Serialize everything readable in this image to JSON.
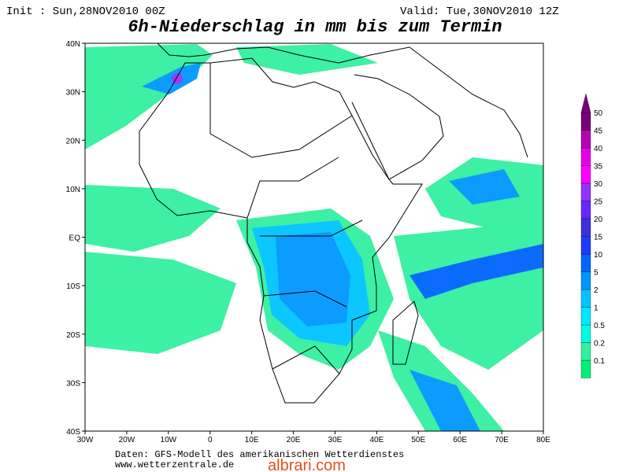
{
  "header": {
    "init": "Init : Sun,28NOV2010 00Z",
    "valid": "Valid: Tue,30NOV2010 12Z",
    "title": "6h-Niederschlag in mm bis zum Termin"
  },
  "axes": {
    "lat_labels": [
      "40N",
      "30N",
      "20N",
      "10N",
      "EQ",
      "10S",
      "20S",
      "30S",
      "40S"
    ],
    "lon_labels": [
      "30W",
      "20W",
      "10W",
      "0",
      "10E",
      "20E",
      "30E",
      "40E",
      "50E",
      "60E",
      "70E",
      "80E"
    ]
  },
  "colorbar": {
    "levels": [
      {
        "value": 0.1,
        "color": "#00f078"
      },
      {
        "value": 0.2,
        "color": "#33f0a0"
      },
      {
        "value": 0.5,
        "color": "#00fae6"
      },
      {
        "value": 1,
        "color": "#00e6ff"
      },
      {
        "value": 2,
        "color": "#00c3ff"
      },
      {
        "value": 5,
        "color": "#0096ff"
      },
      {
        "value": 10,
        "color": "#0064ff"
      },
      {
        "value": 15,
        "color": "#1e3cff"
      },
      {
        "value": 20,
        "color": "#3c32dc"
      },
      {
        "value": 25,
        "color": "#6428ff"
      },
      {
        "value": 30,
        "color": "#9632ff"
      },
      {
        "value": 35,
        "color": "#ff00ff"
      },
      {
        "value": 40,
        "color": "#e600e6"
      },
      {
        "value": 45,
        "color": "#b400b4"
      },
      {
        "value": 50,
        "color": "#780078"
      }
    ]
  },
  "footer": {
    "source": "Daten: GFS-Modell des amerikanischen Wetterdienstes",
    "url": "www.wetterzentrale.de",
    "watermark": "albrari.com"
  }
}
